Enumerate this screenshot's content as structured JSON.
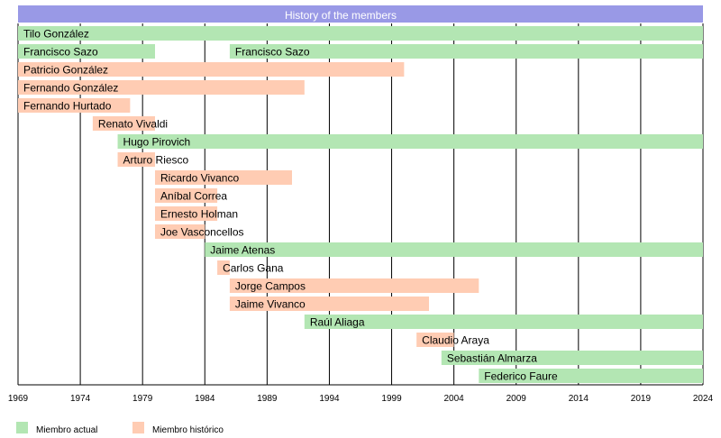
{
  "chart_data": {
    "type": "timeline",
    "title": "History of the members",
    "xlim": [
      1969,
      2024
    ],
    "x_ticks": [
      1969,
      1974,
      1979,
      1984,
      1989,
      1994,
      1999,
      2004,
      2009,
      2014,
      2019,
      2024
    ],
    "grid": true,
    "legend_position": "bottom-left",
    "legend": [
      {
        "key": "actual",
        "label": "Miembro actual",
        "color": "#b3e6b3"
      },
      {
        "key": "historico",
        "label": "Miembro histórico",
        "color": "#ffccb3"
      }
    ],
    "series": [
      {
        "name": "Tilo González",
        "status": "actual",
        "periods": [
          [
            1969,
            2024
          ]
        ]
      },
      {
        "name": "Francisco Sazo",
        "status": "actual",
        "periods": [
          [
            1969,
            1980
          ],
          [
            1986,
            2024
          ]
        ]
      },
      {
        "name": "Patricio González",
        "status": "historico",
        "periods": [
          [
            1969,
            2000
          ]
        ]
      },
      {
        "name": "Fernando González",
        "status": "historico",
        "periods": [
          [
            1969,
            1992
          ]
        ]
      },
      {
        "name": "Fernando Hurtado",
        "status": "historico",
        "periods": [
          [
            1969,
            1978
          ]
        ]
      },
      {
        "name": "Renato Vivaldi",
        "status": "historico",
        "periods": [
          [
            1975,
            1980
          ]
        ]
      },
      {
        "name": "Hugo Pirovich",
        "status": "actual",
        "periods": [
          [
            1977,
            2024
          ]
        ]
      },
      {
        "name": "Arturo Riesco",
        "status": "historico",
        "periods": [
          [
            1977,
            1980
          ]
        ]
      },
      {
        "name": "Ricardo Vivanco",
        "status": "historico",
        "periods": [
          [
            1980,
            1991
          ]
        ]
      },
      {
        "name": "Aníbal Correa",
        "status": "historico",
        "periods": [
          [
            1980,
            1985
          ]
        ]
      },
      {
        "name": "Ernesto Holman",
        "status": "historico",
        "periods": [
          [
            1980,
            1985
          ]
        ]
      },
      {
        "name": "Joe Vasconcellos",
        "status": "historico",
        "periods": [
          [
            1980,
            1984
          ]
        ]
      },
      {
        "name": "Jaime Atenas",
        "status": "actual",
        "periods": [
          [
            1984,
            2024
          ]
        ]
      },
      {
        "name": "Carlos Gana",
        "status": "historico",
        "periods": [
          [
            1985,
            1986
          ]
        ]
      },
      {
        "name": "Jorge Campos",
        "status": "historico",
        "periods": [
          [
            1986,
            2006
          ]
        ]
      },
      {
        "name": "Jaime Vivanco",
        "status": "historico",
        "periods": [
          [
            1986,
            2002
          ]
        ]
      },
      {
        "name": "Raúl Aliaga",
        "status": "actual",
        "periods": [
          [
            1992,
            2024
          ]
        ]
      },
      {
        "name": "Claudio Araya",
        "status": "historico",
        "periods": [
          [
            2001,
            2004
          ]
        ]
      },
      {
        "name": "Sebastián Almarza",
        "status": "actual",
        "periods": [
          [
            2003,
            2024
          ]
        ]
      },
      {
        "name": "Federico Faure",
        "status": "actual",
        "periods": [
          [
            2006,
            2024
          ]
        ]
      }
    ],
    "title_bar_color": "#9999e6"
  }
}
